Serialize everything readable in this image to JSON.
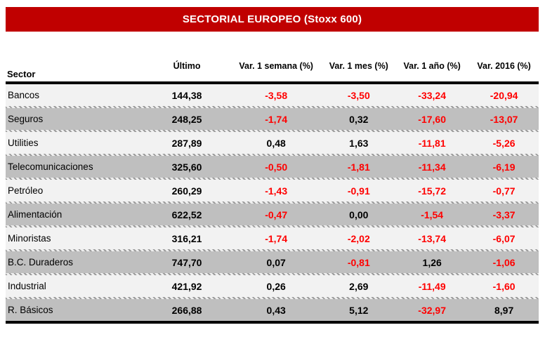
{
  "colors": {
    "banner_bg": "#c00000",
    "banner_text": "#ffffff",
    "negative": "#ff0000",
    "row_light": "#f2f2f2",
    "row_dark": "#bfbfbf"
  },
  "chart_data": {
    "type": "table",
    "title": "SECTORIAL EUROPEO (Stoxx 600)",
    "columns": [
      "Sector",
      "Último",
      "Var. 1 semana (%)",
      "Var. 1 mes (%)",
      "Var. 1 año (%)",
      "Var. 2016 (%)"
    ],
    "rows": [
      [
        "Bancos",
        "144,38",
        "-3,58",
        "-3,50",
        "-33,24",
        "-20,94"
      ],
      [
        "Seguros",
        "248,25",
        "-1,74",
        "0,32",
        "-17,60",
        "-13,07"
      ],
      [
        "Utilities",
        "287,89",
        "0,48",
        "1,63",
        "-11,81",
        "-5,26"
      ],
      [
        "Telecomunicaciones",
        "325,60",
        "-0,50",
        "-1,81",
        "-11,34",
        "-6,19"
      ],
      [
        "Petróleo",
        "260,29",
        "-1,43",
        "-0,91",
        "-15,72",
        "-0,77"
      ],
      [
        "Alimentación",
        "622,52",
        "-0,47",
        "0,00",
        "-1,54",
        "-3,37"
      ],
      [
        "Minoristas",
        "316,21",
        "-1,74",
        "-2,02",
        "-13,74",
        "-6,07"
      ],
      [
        "B.C. Duraderos",
        "747,70",
        "0,07",
        "-0,81",
        "1,26",
        "-1,06"
      ],
      [
        "Industrial",
        "421,92",
        "0,26",
        "2,69",
        "-11,49",
        "-1,60"
      ],
      [
        "R. Básicos",
        "266,88",
        "0,43",
        "5,12",
        "-32,97",
        "8,97"
      ]
    ],
    "negative_value_color": "#ff0000",
    "row_striping": [
      "#f2f2f2",
      "#bfbfbf"
    ]
  }
}
